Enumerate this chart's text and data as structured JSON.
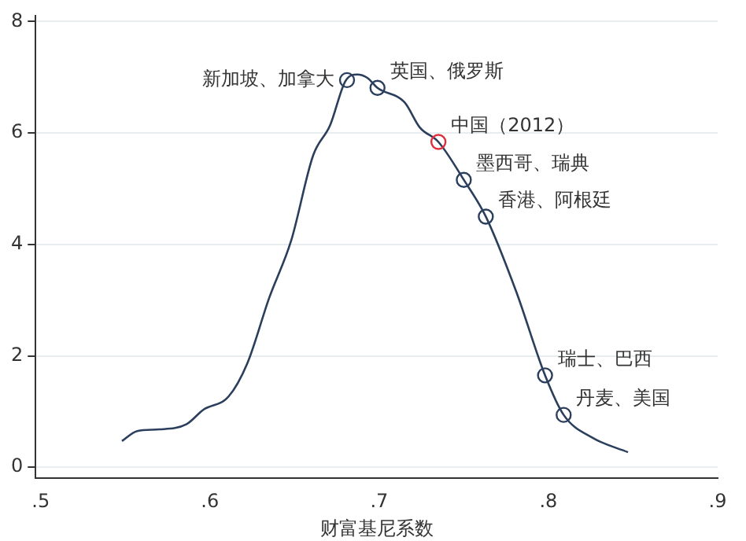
{
  "chart_data": {
    "type": "line",
    "xlabel": "财富基尼系数",
    "xlim": [
      0.497,
      0.9
    ],
    "ylim": [
      -0.2,
      8.1
    ],
    "xticks": [
      {
        "value": 0.5,
        "label": ".5"
      },
      {
        "value": 0.6,
        "label": ".6"
      },
      {
        "value": 0.7,
        "label": ".7"
      },
      {
        "value": 0.8,
        "label": ".8"
      },
      {
        "value": 0.9,
        "label": ".9"
      }
    ],
    "yticks": [
      0,
      2,
      4,
      6,
      8
    ],
    "grid": "y",
    "legend": false,
    "series": [
      {
        "type": "line",
        "color": "#2b3f5c",
        "marker": "none",
        "x": [
          0.548,
          0.557,
          0.57,
          0.586,
          0.596,
          0.611,
          0.622,
          0.635,
          0.648,
          0.661,
          0.671,
          0.68,
          0.687,
          0.693,
          0.699,
          0.715,
          0.724,
          0.735,
          0.75,
          0.763,
          0.781,
          0.798,
          0.809,
          0.826,
          0.847
        ],
        "values": [
          0.47,
          0.65,
          0.68,
          0.77,
          1.03,
          1.27,
          1.86,
          3.04,
          4.07,
          5.6,
          6.14,
          6.93,
          7.05,
          6.99,
          6.81,
          6.55,
          6.1,
          5.84,
          5.16,
          4.5,
          3.15,
          1.65,
          0.94,
          0.53,
          0.27
        ]
      },
      {
        "type": "scatter",
        "marker": "circle",
        "x": [
          0.681,
          0.699,
          0.735,
          0.75,
          0.763,
          0.798,
          0.809
        ],
        "values": [
          6.95,
          6.81,
          5.84,
          5.16,
          4.5,
          1.65,
          0.94
        ],
        "colors": [
          "#2b3f5c",
          "#2b3f5c",
          "#e0303c",
          "#2b3f5c",
          "#2b3f5c",
          "#2b3f5c",
          "#2b3f5c"
        ]
      }
    ],
    "annotations": [
      {
        "text": "新加坡、加拿大",
        "x": 0.681,
        "y": 6.95
      },
      {
        "text": "英国、俄罗斯",
        "x": 0.699,
        "y": 6.81
      },
      {
        "text": "中国（2012）",
        "x": 0.735,
        "y": 5.84
      },
      {
        "text": "墨西哥、瑞典",
        "x": 0.75,
        "y": 5.16
      },
      {
        "text": "香港、阿根廷",
        "x": 0.763,
        "y": 4.5
      },
      {
        "text": "瑞士、巴西",
        "x": 0.798,
        "y": 1.65
      },
      {
        "text": "丹麦、美国",
        "x": 0.809,
        "y": 0.94
      }
    ]
  }
}
